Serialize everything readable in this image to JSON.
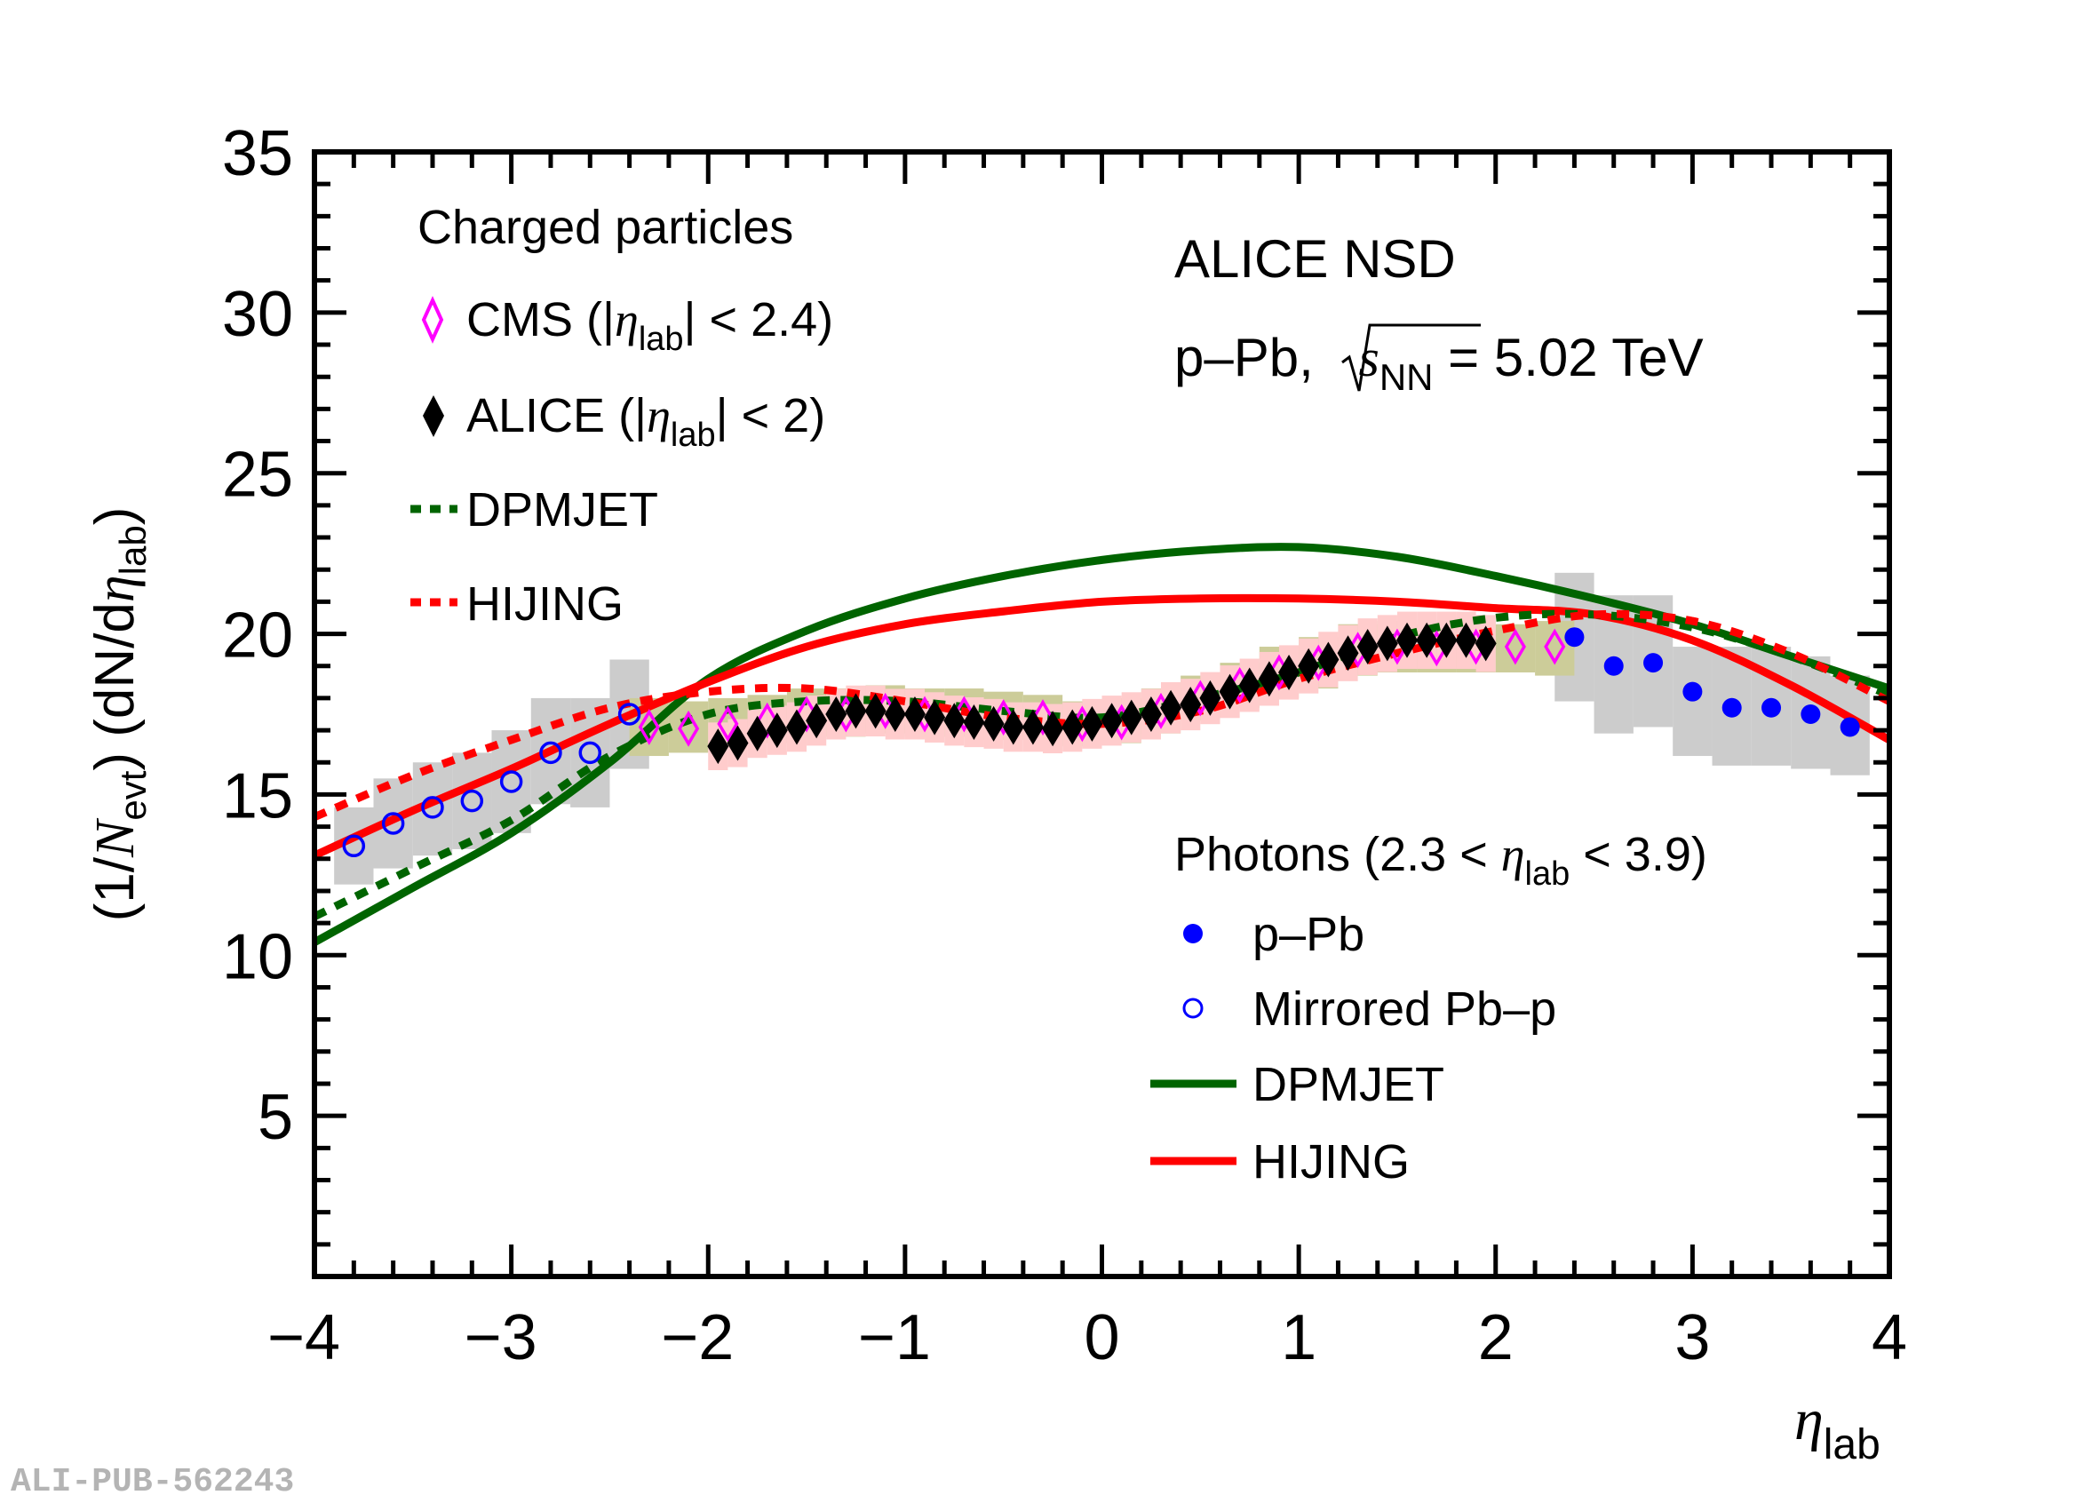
{
  "chart_data": {
    "type": "scatter",
    "title": "",
    "xlabel": "η",
    "xlabel_sub": "lab",
    "ylabel_parts": [
      "(1/",
      "N",
      "evt",
      ") (dN/d",
      "η",
      "lab",
      ")"
    ],
    "xlim": [
      -4,
      4
    ],
    "ylim": [
      0,
      35
    ],
    "x_ticks": [
      -4,
      -3,
      -2,
      -1,
      0,
      1,
      2,
      3,
      4
    ],
    "x_tick_labels": [
      "−4",
      "−3",
      "−2",
      "−1",
      "0",
      "1",
      "2",
      "3",
      "4"
    ],
    "y_ticks": [
      5,
      10,
      15,
      20,
      25,
      30,
      35
    ],
    "y_tick_labels": [
      "5",
      "10",
      "15",
      "20",
      "25",
      "30",
      "35"
    ],
    "grid": false,
    "annotations": {
      "experiment": "ALICE NSD",
      "system_prefix": "p–Pb, ",
      "sqrt_s": "s",
      "sqrt_sub": "NN",
      "energy": " = 5.02 TeV"
    },
    "legend_charged": {
      "title": "Charged particles",
      "cms": {
        "pre": "CMS (|",
        "eta": "η",
        "sub": "lab",
        "post": "| < 2.4)"
      },
      "alice": {
        "pre": "ALICE (|",
        "eta": "η",
        "sub": "lab",
        "post": "| < 2)"
      },
      "dpmjet": "DPMJET",
      "hijing": "HIJING"
    },
    "legend_photons": {
      "title_pre": "Photons (2.3 < ",
      "title_eta": "η",
      "title_sub": "lab",
      "title_post": " < 3.9)",
      "ppb": "p–Pb",
      "mirrored": "Mirrored Pb–p",
      "dpmjet": "DPMJET",
      "hijing": "HIJING"
    },
    "watermark": "ALI-PUB-562243",
    "colors": {
      "photon": "#0000ff",
      "cms": "#ff00ff",
      "alice": "#000000",
      "dpmjet": "#006400",
      "hijing": "#ff0000",
      "photon_syst": "#cccccc",
      "alice_syst": "#ffcccc",
      "cms_syst": "#cccc99"
    },
    "series": [
      {
        "name": "Photons p–Pb",
        "marker": "filled-circle",
        "x": [
          2.4,
          2.6,
          2.8,
          3.0,
          3.2,
          3.4,
          3.6,
          3.8
        ],
        "y": [
          19.9,
          19.0,
          19.1,
          18.2,
          17.7,
          17.7,
          17.5,
          17.1
        ],
        "syst_low": [
          17.9,
          16.9,
          17.1,
          16.2,
          15.9,
          15.9,
          15.8,
          15.6
        ],
        "syst_high": [
          21.9,
          21.2,
          21.2,
          19.6,
          19.6,
          19.6,
          19.3,
          18.7
        ]
      },
      {
        "name": "Photons Mirrored Pb–p",
        "marker": "open-circle",
        "x": [
          -3.8,
          -3.6,
          -3.4,
          -3.2,
          -3.0,
          -2.8,
          -2.6,
          -2.4
        ],
        "y": [
          13.4,
          14.1,
          14.6,
          14.8,
          15.4,
          16.3,
          16.3,
          17.5
        ],
        "syst_low": [
          12.2,
          12.7,
          13.1,
          13.3,
          13.8,
          14.7,
          14.6,
          15.8
        ],
        "syst_high": [
          14.6,
          15.5,
          16.0,
          16.3,
          17.0,
          18.0,
          18.0,
          19.2
        ]
      },
      {
        "name": "CMS charged particles",
        "marker": "open-diamond",
        "x": [
          -2.3,
          -2.1,
          -1.9,
          -1.7,
          -1.5,
          -1.3,
          -1.1,
          -0.9,
          -0.7,
          -0.5,
          -0.3,
          -0.1,
          0.1,
          0.3,
          0.5,
          0.7,
          0.9,
          1.1,
          1.3,
          1.5,
          1.7,
          1.9,
          2.1,
          2.3
        ],
        "y": [
          17.1,
          17.05,
          17.2,
          17.3,
          17.5,
          17.5,
          17.6,
          17.5,
          17.5,
          17.4,
          17.4,
          17.2,
          17.25,
          17.6,
          18.0,
          18.4,
          18.8,
          19.1,
          19.5,
          19.6,
          19.55,
          19.6,
          19.6,
          19.6
        ],
        "syst_low": [
          16.2,
          16.3,
          16.5,
          16.6,
          16.8,
          16.8,
          16.9,
          16.8,
          16.8,
          16.7,
          16.7,
          16.5,
          16.6,
          16.9,
          17.3,
          17.7,
          18.0,
          18.3,
          18.7,
          18.8,
          18.8,
          18.8,
          18.8,
          18.7
        ],
        "syst_high": [
          18.0,
          17.9,
          18.0,
          18.1,
          18.3,
          18.3,
          18.4,
          18.3,
          18.3,
          18.2,
          18.1,
          17.9,
          18.0,
          18.3,
          18.7,
          19.1,
          19.6,
          19.9,
          20.3,
          20.4,
          20.3,
          20.4,
          20.3,
          20.4
        ]
      },
      {
        "name": "ALICE charged particles",
        "marker": "filled-diamond",
        "x": [
          -1.95,
          -1.85,
          -1.75,
          -1.65,
          -1.55,
          -1.45,
          -1.35,
          -1.25,
          -1.15,
          -1.05,
          -0.95,
          -0.85,
          -0.75,
          -0.65,
          -0.55,
          -0.45,
          -0.35,
          -0.25,
          -0.15,
          -0.05,
          0.05,
          0.15,
          0.25,
          0.35,
          0.45,
          0.55,
          0.65,
          0.75,
          0.85,
          0.95,
          1.05,
          1.15,
          1.25,
          1.35,
          1.45,
          1.55,
          1.65,
          1.75,
          1.85,
          1.95
        ],
        "y": [
          16.5,
          16.6,
          16.9,
          17.0,
          17.1,
          17.3,
          17.5,
          17.6,
          17.6,
          17.5,
          17.5,
          17.4,
          17.3,
          17.25,
          17.2,
          17.1,
          17.1,
          17.05,
          17.1,
          17.2,
          17.3,
          17.4,
          17.5,
          17.7,
          17.8,
          18.0,
          18.2,
          18.4,
          18.6,
          18.8,
          19.0,
          19.2,
          19.4,
          19.6,
          19.7,
          19.8,
          19.8,
          19.8,
          19.8,
          19.7
        ],
        "syst_rel": 0.045
      },
      {
        "name": "DPMJET photons",
        "style": "solid",
        "x": [
          -4,
          -3.5,
          -3,
          -2.5,
          -2,
          -1.5,
          -1,
          -0.5,
          0,
          0.5,
          1,
          1.5,
          2,
          2.5,
          3,
          3.5,
          4
        ],
        "y": [
          10.4,
          12.1,
          13.8,
          16.0,
          18.6,
          20.1,
          21.1,
          21.8,
          22.3,
          22.6,
          22.7,
          22.4,
          21.8,
          21.1,
          20.3,
          19.3,
          18.3
        ]
      },
      {
        "name": "HIJING photons",
        "style": "solid",
        "x": [
          -4,
          -3.5,
          -3,
          -2.5,
          -2,
          -1.5,
          -1,
          -0.5,
          0,
          0.5,
          1,
          1.5,
          2,
          2.5,
          3,
          3.5,
          4
        ],
        "y": [
          13.1,
          14.5,
          15.8,
          17.2,
          18.5,
          19.6,
          20.3,
          20.7,
          21.0,
          21.1,
          21.1,
          21.0,
          20.8,
          20.6,
          19.8,
          18.4,
          16.7
        ]
      },
      {
        "name": "DPMJET charged particles",
        "style": "dashed",
        "x": [
          -4,
          -3.5,
          -3,
          -2.5,
          -2,
          -1.5,
          -1,
          -0.5,
          0,
          0.5,
          1,
          1.5,
          2,
          2.5,
          3,
          3.5,
          4
        ],
        "y": [
          11.2,
          12.7,
          14.2,
          16.2,
          17.5,
          17.9,
          17.9,
          17.6,
          17.4,
          18.0,
          18.8,
          19.9,
          20.5,
          20.6,
          20.2,
          19.3,
          18.1
        ]
      },
      {
        "name": "HIJING charged particles",
        "style": "dashed",
        "x": [
          -4,
          -3.5,
          -3,
          -2.5,
          -2,
          -1.5,
          -1,
          -0.5,
          0,
          0.5,
          1,
          1.5,
          2,
          2.5,
          3,
          3.5,
          4
        ],
        "y": [
          14.3,
          15.6,
          16.7,
          17.7,
          18.2,
          18.3,
          17.9,
          17.4,
          17.2,
          17.6,
          18.6,
          19.4,
          20.1,
          20.6,
          20.4,
          19.4,
          17.9
        ]
      }
    ]
  }
}
